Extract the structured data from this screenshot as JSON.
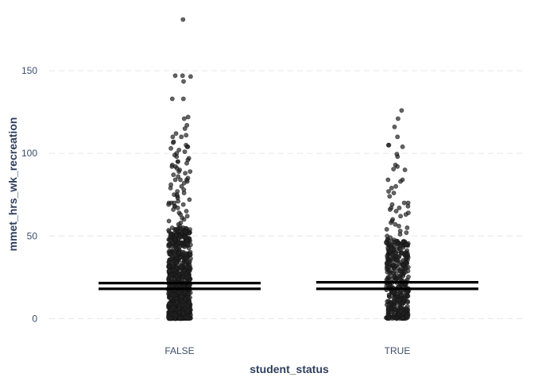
{
  "chart_data": {
    "type": "scatter",
    "title": "",
    "xlabel": "student_status",
    "ylabel": "mmet_hrs_wk_recreation",
    "categories": [
      "FALSE",
      "TRUE"
    ],
    "yticks": [
      0,
      50,
      100,
      150
    ],
    "ylim": [
      -8,
      188
    ],
    "grid": true,
    "legend": "none",
    "point_color": "#222222",
    "reference_lines": [
      {
        "category": "FALSE",
        "values": [
          21.5,
          18.0
        ]
      },
      {
        "category": "TRUE",
        "values": [
          22.0,
          18.0
        ]
      }
    ],
    "series": [
      {
        "category": "FALSE",
        "values": [
          181,
          147,
          147,
          146.5,
          143.5,
          133,
          133,
          122,
          121,
          117,
          115,
          112,
          111,
          110,
          110,
          107,
          106.5,
          105,
          104,
          104,
          103,
          102,
          101,
          100,
          99,
          98,
          97,
          96,
          95,
          95,
          94,
          93,
          92,
          92,
          91,
          90,
          89,
          89,
          88,
          87,
          86,
          85,
          84,
          84,
          84,
          83,
          82,
          81,
          80,
          79,
          78,
          77,
          76,
          75,
          75,
          74,
          73,
          72,
          71,
          70,
          70,
          70,
          69,
          69,
          68,
          68,
          67,
          66,
          65,
          64,
          63,
          62,
          61,
          60,
          59,
          58,
          57,
          56,
          55,
          54,
          53,
          52,
          51,
          50
        ]
      },
      {
        "category": "TRUE",
        "values": [
          126,
          121,
          116,
          110,
          105,
          105,
          104,
          99.5,
          98,
          93,
          92,
          90.5,
          90,
          84,
          84,
          83,
          80,
          79,
          77,
          76,
          74,
          70,
          70,
          69,
          68,
          67,
          67,
          66,
          65,
          64,
          63,
          62,
          60,
          59,
          58,
          57,
          56,
          55,
          54,
          53,
          52,
          51,
          50,
          49,
          48,
          47,
          46,
          45,
          44,
          43,
          42,
          41,
          40,
          40,
          39,
          38,
          37,
          36,
          35,
          34,
          33,
          32,
          31,
          30
        ]
      }
    ]
  }
}
